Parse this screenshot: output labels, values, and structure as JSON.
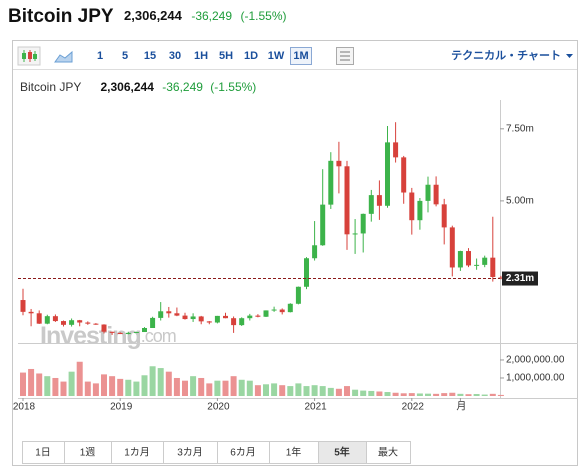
{
  "header": {
    "name": "Bitcoin JPY",
    "price": "2,306,244",
    "change": "-36,249",
    "change_pct": "(-1.55%)"
  },
  "toolbar": {
    "intervals": [
      "1",
      "5",
      "15",
      "30",
      "1H",
      "5H",
      "1D",
      "1W",
      "1M"
    ],
    "selected": "1M",
    "menu": "テクニカル・チャート"
  },
  "ranges": {
    "items": [
      "1日",
      "1週",
      "1カ月",
      "3カ月",
      "6カ月",
      "1年",
      "5年",
      "最大"
    ],
    "selected": "5年"
  },
  "chart_data": {
    "type": "candlestick",
    "watermark": {
      "brand": "Investing",
      "suffix": ".com"
    },
    "categories": [
      "2018",
      null,
      null,
      null,
      null,
      null,
      null,
      null,
      null,
      null,
      null,
      null,
      "2019",
      null,
      null,
      null,
      null,
      null,
      null,
      null,
      null,
      null,
      null,
      null,
      "2020",
      null,
      null,
      null,
      null,
      null,
      null,
      null,
      null,
      null,
      null,
      null,
      "2021",
      null,
      null,
      null,
      null,
      null,
      null,
      null,
      null,
      null,
      null,
      null,
      "2022",
      null,
      null,
      null,
      null,
      null,
      "月",
      null,
      null,
      null,
      null,
      null
    ],
    "open": [
      1560000,
      1150000,
      1100000,
      740000,
      1000000,
      830000,
      700000,
      860000,
      780000,
      740000,
      710000,
      460000,
      420000,
      380000,
      420000,
      450000,
      590000,
      940000,
      1170000,
      1100000,
      1020000,
      900000,
      990000,
      820000,
      780000,
      1010000,
      930000,
      690000,
      930000,
      1020000,
      980000,
      1200000,
      1230000,
      1140000,
      1430000,
      2020000,
      3010000,
      3460000,
      4870000,
      6390000,
      6200000,
      3840000,
      3870000,
      4550000,
      5200000,
      4830000,
      7030000,
      6510000,
      5290000,
      4330000,
      5000000,
      5560000,
      4880000,
      4080000,
      2690000,
      3260000,
      2760000,
      2780000,
      3030000,
      2340000
    ],
    "high": [
      1950000,
      1250000,
      1200000,
      1050000,
      1060000,
      850000,
      920000,
      870000,
      820000,
      760000,
      720000,
      460000,
      440000,
      460000,
      460000,
      620000,
      980000,
      1490000,
      1320000,
      1300000,
      1120000,
      1100000,
      1010000,
      830000,
      1010000,
      1120000,
      990000,
      960000,
      1080000,
      1070000,
      1200000,
      1330000,
      1270000,
      1450000,
      2030000,
      3050000,
      4300000,
      6100000,
      6690000,
      7050000,
      6390000,
      4370000,
      4560000,
      5380000,
      5710000,
      7600000,
      7730000,
      6560000,
      5450000,
      5100000,
      5840000,
      5850000,
      5070000,
      4140000,
      3270000,
      3360000,
      3000000,
      3100000,
      4450000,
      2400000
    ],
    "low": [
      1030000,
      650000,
      730000,
      720000,
      800000,
      640000,
      640000,
      650000,
      700000,
      700000,
      400000,
      350000,
      380000,
      370000,
      420000,
      450000,
      590000,
      850000,
      950000,
      1000000,
      880000,
      800000,
      720000,
      720000,
      750000,
      930000,
      420000,
      660000,
      850000,
      960000,
      970000,
      1150000,
      1060000,
      1130000,
      1410000,
      1940000,
      2930000,
      3440000,
      4720000,
      5260000,
      3300000,
      3160000,
      3210000,
      4280000,
      4340000,
      4760000,
      6330000,
      4900000,
      3830000,
      4000000,
      4600000,
      4810000,
      3490000,
      2380000,
      2570000,
      2700000,
      2610000,
      2700000,
      2200000,
      2280000
    ],
    "close": [
      1150000,
      1100000,
      740000,
      1000000,
      830000,
      700000,
      860000,
      780000,
      740000,
      710000,
      460000,
      420000,
      380000,
      420000,
      450000,
      590000,
      940000,
      1170000,
      1100000,
      1020000,
      900000,
      990000,
      820000,
      780000,
      1010000,
      930000,
      690000,
      930000,
      1020000,
      980000,
      1200000,
      1230000,
      1140000,
      1430000,
      2020000,
      3010000,
      3460000,
      4870000,
      6390000,
      6200000,
      3840000,
      3870000,
      4550000,
      5200000,
      4830000,
      7030000,
      6510000,
      5290000,
      4330000,
      5000000,
      5560000,
      4880000,
      4080000,
      2690000,
      3260000,
      2760000,
      2780000,
      3030000,
      2360000,
      2306244
    ],
    "up_color": "#3cb34a",
    "down_color": "#d7413b",
    "volume": [
      1300000,
      1500000,
      1250000,
      1100000,
      1000000,
      800000,
      1350000,
      1900000,
      800000,
      700000,
      1200000,
      1100000,
      950000,
      900000,
      800000,
      1150000,
      1650000,
      1550000,
      1350000,
      1000000,
      850000,
      1100000,
      1000000,
      700000,
      850000,
      850000,
      1100000,
      900000,
      850000,
      600000,
      650000,
      700000,
      600000,
      550000,
      700000,
      550000,
      600000,
      550000,
      450000,
      400000,
      550000,
      350000,
      300000,
      280000,
      250000,
      220000,
      180000,
      150000,
      160000,
      140000,
      130000,
      120000,
      160000,
      180000,
      120000,
      100000,
      110000,
      80000,
      120000,
      60000
    ],
    "volume_up_color": "#9ad6a2",
    "volume_down_color": "#eb9292",
    "ylim": [
      0,
      8500000
    ],
    "yticks": [
      {
        "value": 5000000,
        "label": "5.00m"
      },
      {
        "value": 7500000,
        "label": "7.50m"
      }
    ],
    "last_label": {
      "value": 2306244,
      "label": "2.31m"
    },
    "y2lim": [
      0,
      2830000
    ],
    "y2ticks": [
      {
        "value": 1000000,
        "label": "1,000,000.00"
      },
      {
        "value": 2000000,
        "label": "2,000,000.00"
      }
    ],
    "grid": false
  }
}
